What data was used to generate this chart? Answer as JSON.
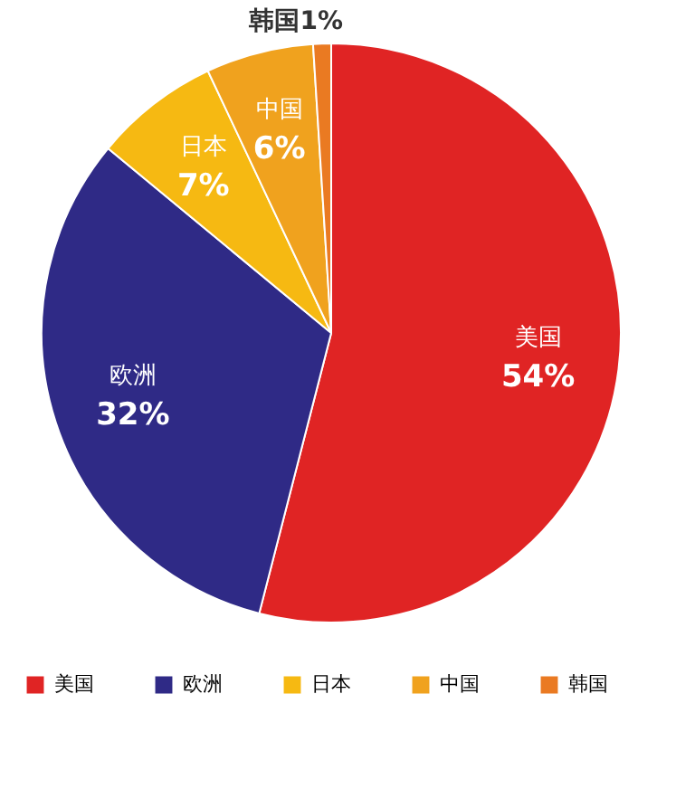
{
  "chart_data": {
    "type": "pie",
    "categories": [
      "美国",
      "欧洲",
      "日本",
      "中国",
      "韩国"
    ],
    "values": [
      54,
      32,
      7,
      6,
      1
    ],
    "colors": [
      "#e02424",
      "#2f2a86",
      "#f6b912",
      "#f0a21e",
      "#ea7a22"
    ],
    "value_labels": [
      "54%",
      "32%",
      "7%",
      "6%",
      "1%"
    ],
    "legend": "bottom"
  }
}
